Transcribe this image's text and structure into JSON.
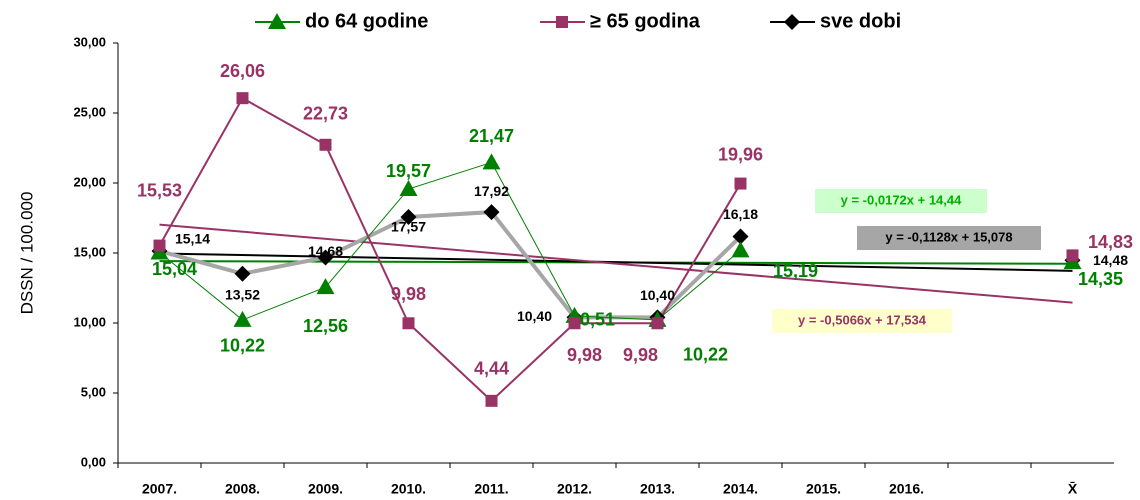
{
  "chart_data": {
    "type": "line",
    "y_label": "DSSN / 100.000",
    "categories": [
      "2007.",
      "2008.",
      "2009.",
      "2010.",
      "2011.",
      "2012.",
      "2013.",
      "2014.",
      "2015.",
      "2016.",
      null,
      "X̄"
    ],
    "series": [
      {
        "name": "do 64 godine",
        "color": "#008000",
        "marker": "triangle",
        "values": [
          15.04,
          10.22,
          12.56,
          19.57,
          21.47,
          10.51,
          10.22,
          15.19,
          null,
          null,
          null,
          14.35
        ],
        "value_labels": [
          "15,04",
          "10,22",
          "12,56",
          "19,57",
          "21,47",
          "10,51",
          "10,22",
          "15,19",
          null,
          null,
          null,
          "14,35"
        ]
      },
      {
        "name": "≥ 65 godina",
        "color": "#993366",
        "marker": "square",
        "values": [
          15.53,
          26.06,
          22.73,
          9.98,
          4.44,
          9.98,
          9.98,
          19.96,
          null,
          null,
          null,
          14.83
        ],
        "value_labels": [
          "15,53",
          "26,06",
          "22,73",
          "9,98",
          "4,44",
          "9,98",
          "9,98",
          "19,96",
          null,
          null,
          null,
          "14,83"
        ]
      },
      {
        "name": "sve dobi",
        "color": "#000000",
        "line_color": "#a6a6a6",
        "marker": "diamond",
        "values": [
          15.14,
          13.52,
          14.68,
          17.57,
          17.92,
          10.4,
          10.4,
          16.18,
          null,
          null,
          null,
          14.48
        ],
        "value_labels": [
          "15,14",
          "13,52",
          "14,68",
          "17,57",
          "17,92",
          "10,40",
          "10,40",
          "16,18",
          null,
          null,
          null,
          "14,48"
        ]
      }
    ],
    "trendlines": [
      {
        "series": 0,
        "label": "y = -0,0172x + 14,44",
        "slope": -0.0172,
        "intercept": 14.44,
        "color": "#008000",
        "box": "#ccffcc",
        "text_color": "#00b000"
      },
      {
        "series": 2,
        "label": "y = -0,1128x + 15,078",
        "slope": -0.1128,
        "intercept": 15.078,
        "color": "#000000",
        "box": "#a6a6a6",
        "text_color": "#000000"
      },
      {
        "series": 1,
        "label": "y = -0,5066x + 17,534",
        "slope": -0.5066,
        "intercept": 17.534,
        "color": "#993366",
        "box": "#ffffcc",
        "text_color": "#993366"
      }
    ],
    "ylim": [
      0,
      30
    ],
    "yticks": [
      {
        "value": 0,
        "label": "0,00"
      },
      {
        "value": 5,
        "label": "5,00"
      },
      {
        "value": 10,
        "label": "10,00"
      },
      {
        "value": 15,
        "label": "15,00"
      },
      {
        "value": 20,
        "label": "20,00"
      },
      {
        "value": 25,
        "label": "25,00"
      },
      {
        "value": 30,
        "label": "30,00"
      }
    ],
    "grid": false
  }
}
